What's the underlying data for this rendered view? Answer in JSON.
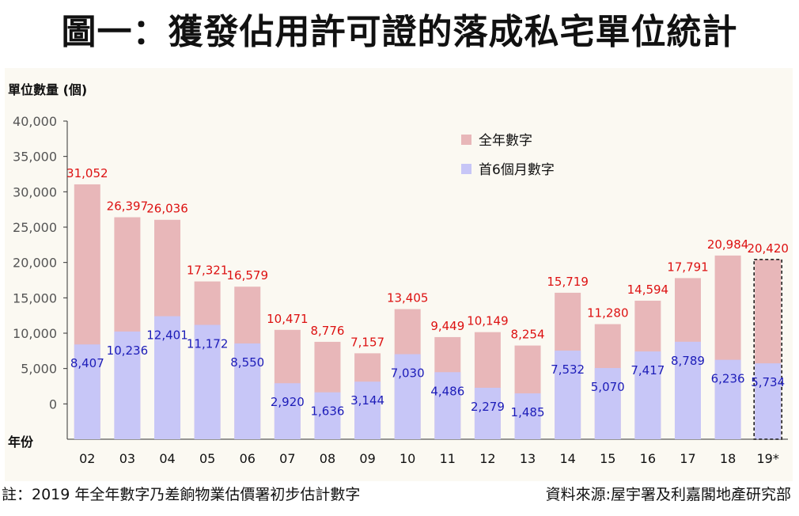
{
  "title": "圖一：獲發佔用許可證的落成私宅單位統計",
  "footnote": "註：2019 年全年數字乃差餉物業估價署初步估計數字",
  "source": "資料來源:屋宇署及利嘉閣地產研究部",
  "colors": {
    "full_year": "#e8b7b9",
    "first_half": "#c7c6f7",
    "full_label": "#dd1111",
    "half_label": "#1c1cb8",
    "axis": "#333333"
  },
  "chart_data": {
    "type": "bar",
    "ylabel": "單位數量 (個)",
    "xlabel": "年份",
    "ylim": [
      -5000,
      40000
    ],
    "yticks": [
      0,
      5000,
      10000,
      15000,
      20000,
      25000,
      30000,
      35000,
      40000
    ],
    "ytick_labels": [
      "0",
      "5,000",
      "10,000",
      "15,000",
      "20,000",
      "25,000",
      "30,000",
      "35,000",
      "40,000"
    ],
    "grid": false,
    "legend_position": "top-right",
    "categories": [
      "02",
      "03",
      "04",
      "05",
      "06",
      "07",
      "08",
      "09",
      "10",
      "11",
      "12",
      "13",
      "14",
      "15",
      "16",
      "17",
      "18",
      "19*"
    ],
    "series": [
      {
        "name": "全年數字",
        "values": [
          31052,
          26397,
          26036,
          17321,
          16579,
          10471,
          8776,
          7157,
          13405,
          9449,
          10149,
          8254,
          15719,
          11280,
          14594,
          17791,
          20984,
          20420
        ],
        "labels": [
          "31,052",
          "26,397",
          "26,036",
          "17,321",
          "16,579",
          "10,471",
          "8,776",
          "7,157",
          "13,405",
          "9,449",
          "10,149",
          "8,254",
          "15,719",
          "11,280",
          "14,594",
          "17,791",
          "20,984",
          "20,420"
        ]
      },
      {
        "name": "首6個月數字",
        "values": [
          8407,
          10236,
          12401,
          11172,
          8550,
          2920,
          1636,
          3144,
          7030,
          4486,
          2279,
          1485,
          7532,
          5070,
          7417,
          8789,
          6236,
          5734
        ],
        "labels": [
          "8,407",
          "10,236",
          "12,401",
          "11,172",
          "8,550",
          "2,920",
          "1,636",
          "3,144",
          "7,030",
          "4,486",
          "2,279",
          "1,485",
          "7,532",
          "5,070",
          "7,417",
          "8,789",
          "6,236",
          "5,734"
        ]
      }
    ],
    "estimated_category": "19*"
  }
}
